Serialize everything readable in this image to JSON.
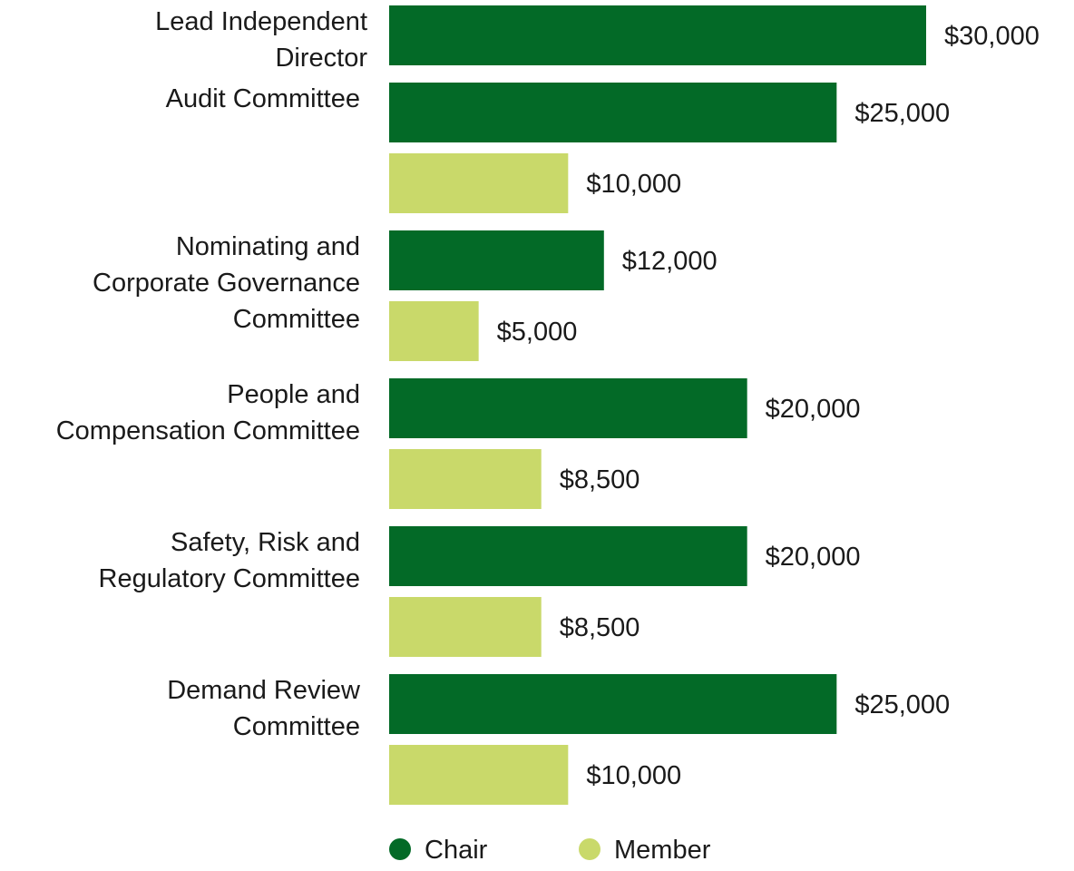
{
  "chart_data": {
    "type": "bar",
    "orientation": "horizontal",
    "title": "",
    "xlabel": "",
    "ylabel": "",
    "xlim": [
      0,
      30000
    ],
    "grid": false,
    "legend_position": "bottom",
    "colors": {
      "Chair": "#036a27",
      "Member": "#c9d96a"
    },
    "groups": [
      {
        "label_lines": [
          "Lead Independent",
          "Director"
        ],
        "bars": [
          {
            "series": "Chair",
            "value": 30000,
            "label": "$30,000"
          }
        ]
      },
      {
        "label_lines": [
          "Audit Committee"
        ],
        "bars": [
          {
            "series": "Chair",
            "value": 25000,
            "label": "$25,000"
          },
          {
            "series": "Member",
            "value": 10000,
            "label": "$10,000"
          }
        ]
      },
      {
        "label_lines": [
          "Nominating and",
          "Corporate Governance",
          "Committee"
        ],
        "bars": [
          {
            "series": "Chair",
            "value": 12000,
            "label": "$12,000"
          },
          {
            "series": "Member",
            "value": 5000,
            "label": "$5,000"
          }
        ]
      },
      {
        "label_lines": [
          "People and",
          "Compensation Committee"
        ],
        "bars": [
          {
            "series": "Chair",
            "value": 20000,
            "label": "$20,000"
          },
          {
            "series": "Member",
            "value": 8500,
            "label": "$8,500"
          }
        ]
      },
      {
        "label_lines": [
          "Safety, Risk and",
          "Regulatory Committee"
        ],
        "bars": [
          {
            "series": "Chair",
            "value": 20000,
            "label": "$20,000"
          },
          {
            "series": "Member",
            "value": 8500,
            "label": "$8,500"
          }
        ]
      },
      {
        "label_lines": [
          "Demand Review",
          "Committee"
        ],
        "bars": [
          {
            "series": "Chair",
            "value": 25000,
            "label": "$25,000"
          },
          {
            "series": "Member",
            "value": 10000,
            "label": "$10,000"
          }
        ]
      }
    ],
    "legend": [
      {
        "series": "Chair",
        "label": "Chair"
      },
      {
        "series": "Member",
        "label": "Member"
      }
    ]
  }
}
